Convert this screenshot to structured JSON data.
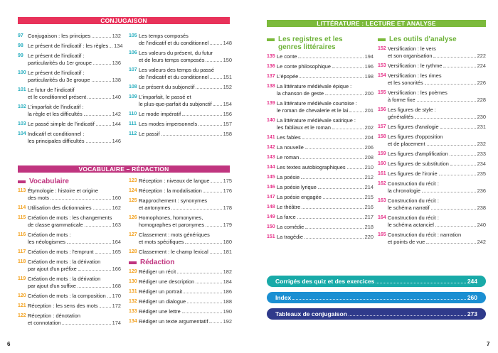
{
  "colors": {
    "conjugaison": "#e8325a",
    "vocabulaire": "#c0357f",
    "litterature": "#7cba3c",
    "conj_num": "#27aebf",
    "vocab_num": "#f3a21f",
    "lit_num": "#e6338a"
  },
  "conjugaison": {
    "title": "CONJUGAISON",
    "col1": [
      {
        "n": "97",
        "lines": [
          "Conjugaison : les principes"
        ],
        "p": "132"
      },
      {
        "n": "98",
        "lines": [
          "Le présent de l'indicatif : les règles"
        ],
        "p": "134"
      },
      {
        "n": "99",
        "lines": [
          "Le présent de l'indicatif :",
          "particularités du 1er groupe"
        ],
        "p": "136"
      },
      {
        "n": "100",
        "lines": [
          "Le présent de l'indicatif :",
          "particularités du 3e groupe"
        ],
        "p": "138"
      },
      {
        "n": "101",
        "lines": [
          "Le futur de l'indicatif",
          "et le conditionnel présent"
        ],
        "p": "140"
      },
      {
        "n": "102",
        "lines": [
          "L'imparfait de l'indicatif :",
          "la règle et les difficultés"
        ],
        "p": "142"
      },
      {
        "n": "103",
        "lines": [
          "Le passé simple de l'indicatif"
        ],
        "p": "144"
      },
      {
        "n": "104",
        "lines": [
          "Indicatif et conditionnel :",
          "les principales difficultés"
        ],
        "p": "146"
      }
    ],
    "col2": [
      {
        "n": "105",
        "lines": [
          "Les temps composés",
          "de l'indicatif et du conditionnel"
        ],
        "p": "148"
      },
      {
        "n": "106",
        "lines": [
          "Les valeurs du présent, du futur",
          "et de leurs temps composés"
        ],
        "p": "150"
      },
      {
        "n": "107",
        "lines": [
          "Les valeurs des temps du passé",
          "de l'indicatif et du conditionnel"
        ],
        "p": "151"
      },
      {
        "n": "108",
        "lines": [
          "Le présent du subjonctif"
        ],
        "p": "152"
      },
      {
        "n": "109",
        "lines": [
          "L'imparfait, le passé et",
          "le plus-que-parfait du subjonctif"
        ],
        "p": "154"
      },
      {
        "n": "110",
        "lines": [
          "Le mode impératif"
        ],
        "p": "156"
      },
      {
        "n": "111",
        "lines": [
          "Les modes impersonnels"
        ],
        "p": "157"
      },
      {
        "n": "112",
        "lines": [
          "Le passif"
        ],
        "p": "158"
      }
    ]
  },
  "vocabulaire": {
    "title": "VOCABULAIRE – RÉDACTION",
    "sub1": "Vocabulaire",
    "sub2": "Rédaction",
    "col1": [
      {
        "n": "113",
        "lines": [
          "Étymologie : histoire et origine",
          "des mots"
        ],
        "p": "160"
      },
      {
        "n": "114",
        "lines": [
          "Utilisation des dictionnaires"
        ],
        "p": "162"
      },
      {
        "n": "115",
        "lines": [
          "Création de mots : les changements",
          "de classe grammaticale"
        ],
        "p": "163"
      },
      {
        "n": "116",
        "lines": [
          "Création de mots :",
          "les néologismes"
        ],
        "p": "164"
      },
      {
        "n": "117",
        "lines": [
          "Création de mots : l'emprunt"
        ],
        "p": "165"
      },
      {
        "n": "118",
        "lines": [
          "Création de mots : la dérivation",
          "par ajout d'un préfixe"
        ],
        "p": "166"
      },
      {
        "n": "119",
        "lines": [
          "Création de mots : la dérivation",
          "par ajout d'un suffixe"
        ],
        "p": "168"
      },
      {
        "n": "120",
        "lines": [
          "Création de mots : la composition"
        ],
        "p": "170"
      },
      {
        "n": "121",
        "lines": [
          "Réception : les sens des mots"
        ],
        "p": "172"
      },
      {
        "n": "122",
        "lines": [
          "Réception : dénotation",
          "et connotation"
        ],
        "p": "174"
      }
    ],
    "col2": [
      {
        "n": "123",
        "lines": [
          "Réception : niveaux de langue"
        ],
        "p": "175"
      },
      {
        "n": "124",
        "lines": [
          "Réception : la modalisation"
        ],
        "p": "176"
      },
      {
        "n": "125",
        "lines": [
          "Rapprochement : synonymes",
          "et antonymes"
        ],
        "p": "178"
      },
      {
        "n": "126",
        "lines": [
          "Homophones, homonymes,",
          "homographes et paronymes"
        ],
        "p": "179"
      },
      {
        "n": "127",
        "lines": [
          "Classement : mots génériques",
          "et mots spécifiques"
        ],
        "p": "180"
      },
      {
        "n": "128",
        "lines": [
          "Classement : le champ lexical"
        ],
        "p": "181"
      }
    ],
    "col3": [
      {
        "n": "129",
        "lines": [
          "Rédiger un récit"
        ],
        "p": "182"
      },
      {
        "n": "130",
        "lines": [
          "Rédiger une description"
        ],
        "p": "184"
      },
      {
        "n": "131",
        "lines": [
          "Rédiger un portrait"
        ],
        "p": "186"
      },
      {
        "n": "132",
        "lines": [
          "Rédiger un dialogue"
        ],
        "p": "188"
      },
      {
        "n": "133",
        "lines": [
          "Rédiger une lettre"
        ],
        "p": "190"
      },
      {
        "n": "134",
        "lines": [
          "Rédiger un texte argumentatif"
        ],
        "p": "192"
      }
    ]
  },
  "litterature": {
    "title": "LITTÉRATURE : LECTURE ET ANALYSE",
    "sub1": "Les registres et les genres littéraires",
    "sub2": "Les outils d'analyse",
    "col1": [
      {
        "n": "135",
        "lines": [
          "Le conte"
        ],
        "p": "194"
      },
      {
        "n": "136",
        "lines": [
          "Le conte philosophique"
        ],
        "p": "196"
      },
      {
        "n": "137",
        "lines": [
          "L'épopée"
        ],
        "p": "198"
      },
      {
        "n": "138",
        "lines": [
          "La littérature médiévale épique :",
          "la chanson de geste"
        ],
        "p": "200"
      },
      {
        "n": "139",
        "lines": [
          "La littérature médiévale courtoise :",
          "le roman de chevalerie et le lai"
        ],
        "p": "201"
      },
      {
        "n": "140",
        "lines": [
          "La littérature médiévale satirique :",
          "les fabliaux et le roman"
        ],
        "p": "202"
      },
      {
        "n": "141",
        "lines": [
          "Les fables"
        ],
        "p": "204"
      },
      {
        "n": "142",
        "lines": [
          "La nouvelle"
        ],
        "p": "206"
      },
      {
        "n": "143",
        "lines": [
          "Le roman"
        ],
        "p": "208"
      },
      {
        "n": "144",
        "lines": [
          "Les textes autobiographiques"
        ],
        "p": "210"
      },
      {
        "n": "145",
        "lines": [
          "La poésie"
        ],
        "p": "212"
      },
      {
        "n": "146",
        "lines": [
          "La poésie lyrique"
        ],
        "p": "214"
      },
      {
        "n": "147",
        "lines": [
          "La poésie engagée"
        ],
        "p": "215"
      },
      {
        "n": "148",
        "lines": [
          "Le théâtre"
        ],
        "p": "216"
      },
      {
        "n": "149",
        "lines": [
          "La farce"
        ],
        "p": "217"
      },
      {
        "n": "150",
        "lines": [
          "La comédie"
        ],
        "p": "218"
      },
      {
        "n": "151",
        "lines": [
          "La tragédie"
        ],
        "p": "220"
      }
    ],
    "col2": [
      {
        "n": "152",
        "lines": [
          "Versification : le vers",
          "et son organisation"
        ],
        "p": "222"
      },
      {
        "n": "153",
        "lines": [
          "Versification : le rythme"
        ],
        "p": "224"
      },
      {
        "n": "154",
        "lines": [
          "Versification : les rimes",
          "et les sonorités"
        ],
        "p": "226"
      },
      {
        "n": "155",
        "lines": [
          "Versification : les poèmes",
          "à forme fixe"
        ],
        "p": "228"
      },
      {
        "n": "156",
        "lines": [
          "Les figures de style :",
          "généralités"
        ],
        "p": "230"
      },
      {
        "n": "157",
        "lines": [
          "Les figures d'analogie"
        ],
        "p": "231"
      },
      {
        "n": "158",
        "lines": [
          "Les figures d'opposition",
          "et de placement"
        ],
        "p": "232"
      },
      {
        "n": "159",
        "lines": [
          "Les figures d'amplification"
        ],
        "p": "233"
      },
      {
        "n": "160",
        "lines": [
          "Les figures de substitution"
        ],
        "p": "234"
      },
      {
        "n": "161",
        "lines": [
          "Les figures de l'ironie"
        ],
        "p": "235"
      },
      {
        "n": "162",
        "lines": [
          "Construction du récit :",
          "la chronologie"
        ],
        "p": "236"
      },
      {
        "n": "163",
        "lines": [
          "Construction du récit :",
          "le schéma narratif"
        ],
        "p": "238"
      },
      {
        "n": "164",
        "lines": [
          "Construction du récit :",
          "le schéma actanciel"
        ],
        "p": "240"
      },
      {
        "n": "165",
        "lines": [
          "Construction du récit : narration",
          "et points de vue"
        ],
        "p": "242"
      }
    ]
  },
  "annexes": [
    {
      "label": "Corrigés des quiz et des exercices",
      "p": "244",
      "color": "#19aaa8"
    },
    {
      "label": "Index",
      "p": "260",
      "color": "#1b8fd2"
    },
    {
      "label": "Tableaux de conjugaison",
      "p": "273",
      "color": "#2f3a8b"
    }
  ],
  "folios": {
    "left": "6",
    "right": "7"
  }
}
